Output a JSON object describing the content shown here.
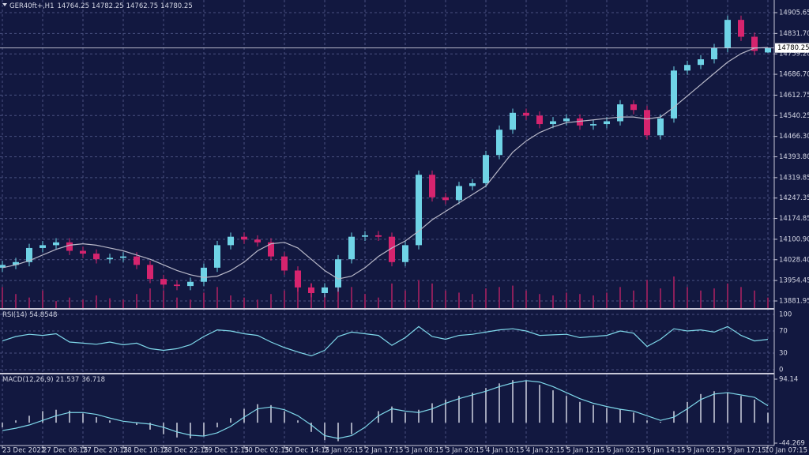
{
  "chart_data": [
    {
      "type": "candlestick",
      "symbol": "GER40ft+,H1",
      "categories": [
        "23 Dec 2022",
        null,
        null,
        "27 Dec 08:15",
        null,
        null,
        "27 Dec 20:15",
        null,
        null,
        "28 Dec 10:15",
        null,
        null,
        "28 Dec 22:15",
        null,
        null,
        "29 Dec 12:15",
        null,
        null,
        "30 Dec 02:15",
        null,
        null,
        "30 Dec 14:15",
        null,
        null,
        "2 Jan 05:15",
        null,
        null,
        "2 Jan 17:15",
        null,
        null,
        "3 Jan 08:15",
        null,
        null,
        "3 Jan 20:15",
        null,
        null,
        "4 Jan 10:15",
        null,
        null,
        "4 Jan 22:15",
        null,
        null,
        "5 Jan 12:15",
        null,
        null,
        "6 Jan 02:15",
        null,
        null,
        "6 Jan 14:15",
        null,
        null,
        "9 Jan 05:15",
        null,
        null,
        "9 Jan 17:15",
        null,
        null,
        "10 Jan 07:15"
      ],
      "open": [
        14000,
        14010,
        14020,
        14070,
        14080,
        14090,
        14060,
        14050,
        14030,
        14035,
        14040,
        14010,
        13960,
        13940,
        13935,
        13950,
        14000,
        14080,
        14110,
        14100,
        14090,
        14040,
        13990,
        13930,
        13910,
        13930,
        14030,
        14110,
        14115,
        14110,
        14020,
        14080,
        14330,
        14250,
        14240,
        14290,
        14300,
        14400,
        14490,
        14550,
        14540,
        14510,
        14520,
        14530,
        14505,
        14510,
        14520,
        14580,
        14560,
        14470,
        14530,
        14700,
        14720,
        14740,
        14780,
        14880,
        14820,
        14764.25
      ],
      "high": [
        14025,
        14035,
        14085,
        14095,
        14105,
        14105,
        14075,
        14065,
        14050,
        14055,
        14055,
        14025,
        13975,
        13955,
        13965,
        14015,
        14095,
        14125,
        14125,
        14115,
        14105,
        14055,
        14005,
        13945,
        13945,
        14045,
        14125,
        14130,
        14130,
        14125,
        14095,
        14345,
        14345,
        14265,
        14305,
        14315,
        14415,
        14505,
        14565,
        14565,
        14555,
        14535,
        14545,
        14545,
        14525,
        14535,
        14595,
        14595,
        14575,
        14545,
        14715,
        14735,
        14755,
        14795,
        14895,
        14895,
        14835,
        14782.25
      ],
      "low": [
        13985,
        13995,
        14005,
        14055,
        14065,
        14045,
        14035,
        14015,
        14015,
        14020,
        13995,
        13945,
        13925,
        13920,
        13920,
        13935,
        13985,
        14065,
        14085,
        14075,
        14025,
        13975,
        13915,
        13895,
        13895,
        13915,
        14015,
        14095,
        14095,
        14005,
        14005,
        14065,
        14235,
        14225,
        14225,
        14275,
        14285,
        14385,
        14475,
        14525,
        14495,
        14495,
        14505,
        14490,
        14490,
        14495,
        14505,
        14545,
        14455,
        14455,
        14515,
        14685,
        14705,
        14725,
        14765,
        14805,
        14755,
        14762.75
      ],
      "close": [
        14010,
        14020,
        14070,
        14080,
        14090,
        14060,
        14050,
        14030,
        14035,
        14040,
        14010,
        13960,
        13940,
        13935,
        13950,
        14000,
        14080,
        14110,
        14100,
        14090,
        14040,
        13990,
        13930,
        13910,
        13930,
        14030,
        14110,
        14115,
        14110,
        14020,
        14080,
        14330,
        14250,
        14240,
        14290,
        14300,
        14400,
        14490,
        14550,
        14540,
        14510,
        14520,
        14530,
        14505,
        14510,
        14520,
        14580,
        14560,
        14470,
        14530,
        14700,
        14720,
        14740,
        14780,
        14880,
        14820,
        14770,
        14780.25
      ],
      "ma": [
        14000,
        14010,
        14025,
        14045,
        14065,
        14080,
        14085,
        14080,
        14070,
        14060,
        14045,
        14030,
        14010,
        13990,
        13975,
        13965,
        13970,
        13990,
        14020,
        14060,
        14085,
        14090,
        14070,
        14030,
        13990,
        13960,
        13970,
        14000,
        14040,
        14070,
        14095,
        14130,
        14170,
        14200,
        14230,
        14260,
        14290,
        14350,
        14410,
        14450,
        14480,
        14500,
        14515,
        14520,
        14525,
        14530,
        14535,
        14535,
        14528,
        14535,
        14570,
        14610,
        14650,
        14690,
        14730,
        14760,
        14780,
        14782
      ],
      "volume": [
        30,
        20,
        15,
        25,
        10,
        15,
        12,
        18,
        14,
        12,
        20,
        28,
        25,
        15,
        12,
        22,
        30,
        18,
        15,
        12,
        20,
        25,
        30,
        35,
        20,
        38,
        30,
        20,
        15,
        35,
        25,
        40,
        35,
        25,
        22,
        20,
        28,
        30,
        32,
        25,
        20,
        18,
        22,
        20,
        18,
        22,
        30,
        25,
        40,
        28,
        45,
        30,
        25,
        28,
        35,
        30,
        25,
        15
      ],
      "up_color": "#6fd3e6",
      "down_color": "#d6246e",
      "ma_color": "#b8b8c8",
      "volume_color": "#8a1f5a",
      "ylim": [
        13856.7,
        14944.9
      ],
      "yticks": [
        14905.65,
        {
          "value": 14831.7,
          "label": "14831.70"
        },
        {
          "value": 14759.2,
          "label": "14759.20"
        },
        {
          "value": 14686.7,
          "label": "14686.70"
        },
        14612.75,
        14540.25,
        {
          "value": 14466.3,
          "label": "14466.30"
        },
        {
          "value": 14393.8,
          "label": "14393.80"
        },
        14319.85,
        14247.35,
        14174.85,
        {
          "value": 14100.9,
          "label": "14100.90"
        },
        {
          "value": 14028.4,
          "label": "14028.40"
        },
        13954.45,
        13881.95
      ],
      "grid": true
    },
    {
      "type": "line",
      "label": "RSI(14)",
      "color": "#7fd8ea",
      "values": [
        52,
        60,
        64,
        62,
        65,
        50,
        48,
        46,
        50,
        45,
        48,
        38,
        35,
        38,
        45,
        60,
        72,
        70,
        65,
        62,
        50,
        40,
        32,
        25,
        35,
        60,
        68,
        65,
        62,
        44,
        58,
        78,
        60,
        55,
        62,
        64,
        68,
        72,
        74,
        70,
        62,
        63,
        64,
        58,
        60,
        62,
        70,
        66,
        42,
        55,
        74,
        70,
        72,
        68,
        78,
        62,
        52,
        54.8548
      ],
      "ylim": [
        0,
        100
      ],
      "yticks": [
        0,
        30,
        70,
        100
      ]
    },
    {
      "type": "macd",
      "label": "MACD(12,26,9)",
      "hist_color": "#a0a4b8",
      "signal_color": "#7fd8ea",
      "main": [
        -10,
        5,
        15,
        25,
        28,
        26,
        20,
        12,
        5,
        0,
        -5,
        -15,
        -25,
        -32,
        -34,
        -28,
        -10,
        10,
        30,
        40,
        38,
        25,
        5,
        -20,
        -38,
        -40,
        -25,
        0,
        25,
        35,
        22,
        28,
        42,
        50,
        58,
        65,
        75,
        85,
        92,
        90,
        82,
        70,
        58,
        45,
        38,
        32,
        30,
        22,
        5,
        2,
        25,
        45,
        62,
        68,
        66,
        58,
        50,
        21.537
      ],
      "signal": [
        -17,
        -12,
        -5,
        5,
        15,
        22,
        22,
        18,
        10,
        3,
        0,
        -3,
        -10,
        -20,
        -27,
        -29,
        -22,
        -8,
        12,
        30,
        34,
        28,
        15,
        -5,
        -28,
        -34,
        -28,
        -10,
        15,
        30,
        25,
        22,
        30,
        42,
        52,
        60,
        68,
        78,
        86,
        91,
        88,
        78,
        65,
        52,
        42,
        35,
        29,
        25,
        15,
        5,
        12,
        30,
        50,
        62,
        65,
        60,
        55,
        36.718
      ],
      "ylim": [
        -44.269,
        94.14
      ],
      "yticks": [
        94.14,
        -44.269
      ]
    }
  ]
}
